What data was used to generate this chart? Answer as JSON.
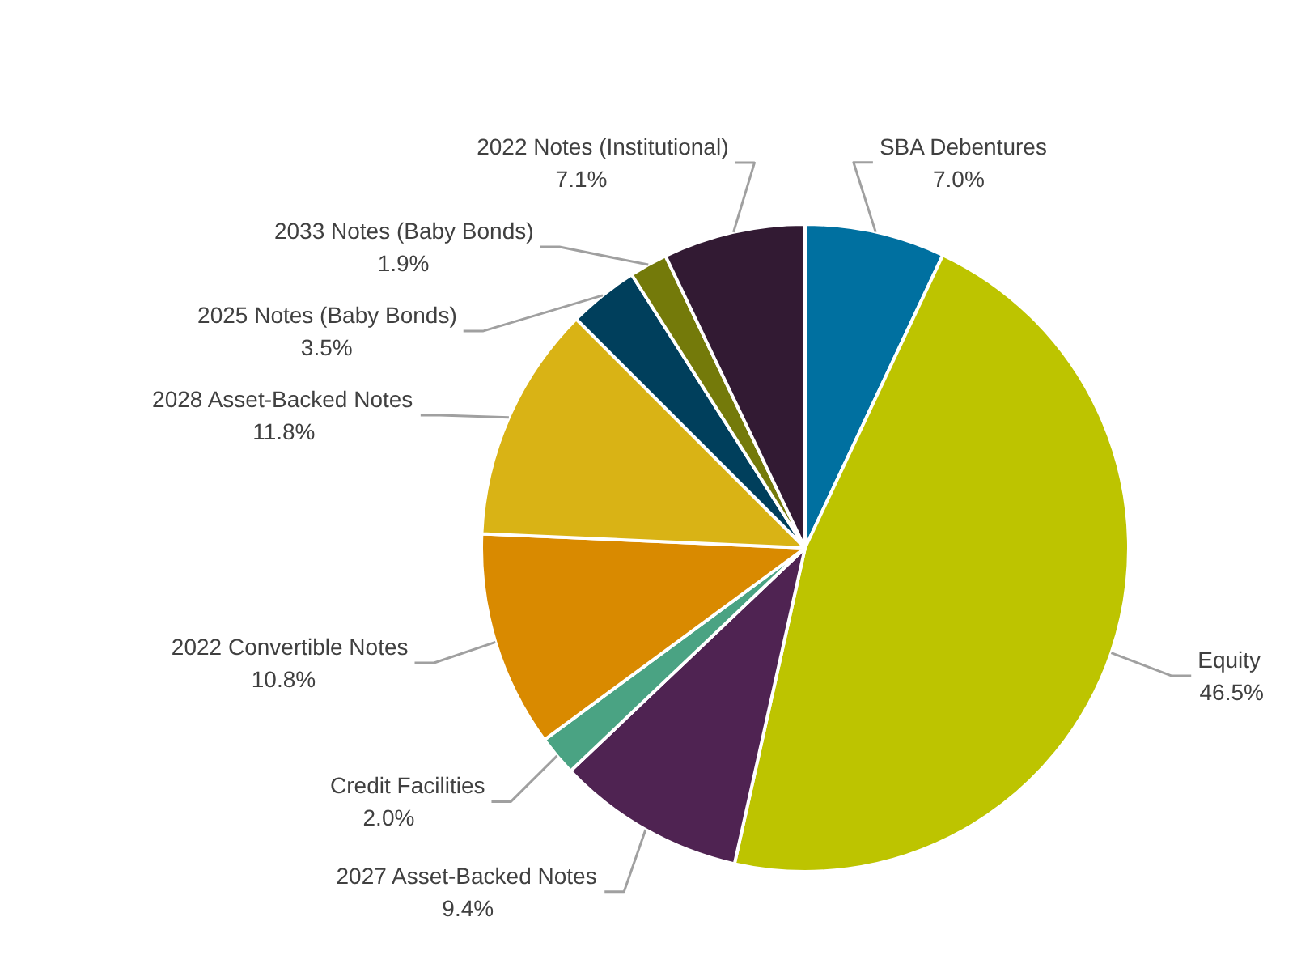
{
  "chart_data": {
    "type": "pie",
    "categories": [
      "SBA Debentures",
      "Equity",
      "2027 Asset-Backed Notes",
      "Credit Facilities",
      "2022 Convertible Notes",
      "2028 Asset-Backed Notes",
      "2025 Notes (Baby Bonds)",
      "2033 Notes (Baby Bonds)",
      "2022 Notes (Institutional)"
    ],
    "values": [
      7.0,
      46.5,
      9.4,
      2.0,
      10.8,
      11.8,
      3.5,
      1.9,
      7.1
    ],
    "colors": [
      "#0070a0",
      "#bdc400",
      "#4f2352",
      "#4aa383",
      "#d98a00",
      "#d9b315",
      "#003f5c",
      "#747a0a",
      "#321a33"
    ],
    "value_labels": [
      "7.0%",
      "46.5%",
      "9.4%",
      "2.0%",
      "10.8%",
      "11.8%",
      "3.5%",
      "1.9%",
      "7.1%"
    ]
  }
}
